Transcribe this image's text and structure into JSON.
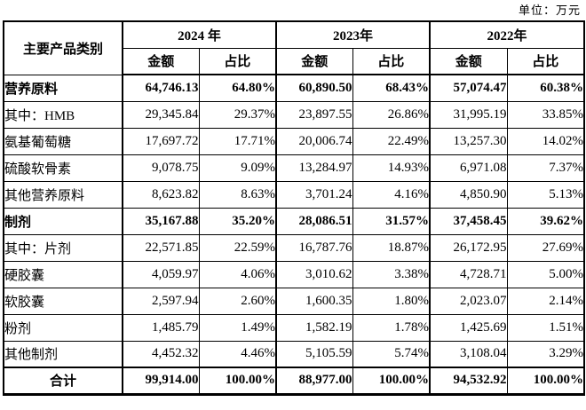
{
  "unit_label": "单位：万元",
  "table": {
    "category_header": "主要产品类别",
    "year_groups": [
      {
        "year": "2024 年",
        "amount_label": "金额",
        "share_label": "占比"
      },
      {
        "year": "2023年",
        "amount_label": "金额",
        "share_label": "占比"
      },
      {
        "year": "2022年",
        "amount_label": "金额",
        "share_label": "占比"
      }
    ],
    "rows": [
      {
        "category": "营养原料",
        "bold": true,
        "total": false,
        "values": [
          "64,746.13",
          "64.80%",
          "60,890.50",
          "68.43%",
          "57,074.47",
          "60.38%"
        ]
      },
      {
        "category": "其中：HMB",
        "bold": false,
        "total": false,
        "values": [
          "29,345.84",
          "29.37%",
          "23,897.55",
          "26.86%",
          "31,995.19",
          "33.85%"
        ]
      },
      {
        "category": "氨基葡萄糖",
        "bold": false,
        "total": false,
        "values": [
          "17,697.72",
          "17.71%",
          "20,006.74",
          "22.49%",
          "13,257.30",
          "14.02%"
        ]
      },
      {
        "category": "硫酸软骨素",
        "bold": false,
        "total": false,
        "values": [
          "9,078.75",
          "9.09%",
          "13,284.97",
          "14.93%",
          "6,971.08",
          "7.37%"
        ]
      },
      {
        "category": "其他营养原料",
        "bold": false,
        "total": false,
        "values": [
          "8,623.82",
          "8.63%",
          "3,701.24",
          "4.16%",
          "4,850.90",
          "5.13%"
        ]
      },
      {
        "category": "制剂",
        "bold": true,
        "total": false,
        "values": [
          "35,167.88",
          "35.20%",
          "28,086.51",
          "31.57%",
          "37,458.45",
          "39.62%"
        ]
      },
      {
        "category": "其中：片剂",
        "bold": false,
        "total": false,
        "values": [
          "22,571.85",
          "22.59%",
          "16,787.76",
          "18.87%",
          "26,172.95",
          "27.69%"
        ]
      },
      {
        "category": "硬胶囊",
        "bold": false,
        "total": false,
        "values": [
          "4,059.97",
          "4.06%",
          "3,010.62",
          "3.38%",
          "4,728.71",
          "5.00%"
        ]
      },
      {
        "category": "软胶囊",
        "bold": false,
        "total": false,
        "values": [
          "2,597.94",
          "2.60%",
          "1,600.35",
          "1.80%",
          "2,023.07",
          "2.14%"
        ]
      },
      {
        "category": "粉剂",
        "bold": false,
        "total": false,
        "values": [
          "1,485.79",
          "1.49%",
          "1,582.19",
          "1.78%",
          "1,425.69",
          "1.51%"
        ]
      },
      {
        "category": "其他制剂",
        "bold": false,
        "total": false,
        "values": [
          "4,452.32",
          "4.46%",
          "5,105.59",
          "5.74%",
          "3,108.04",
          "3.29%"
        ]
      },
      {
        "category": "合计",
        "bold": true,
        "total": true,
        "values": [
          "99,914.00",
          "100.00%",
          "88,977.00",
          "100.00%",
          "94,532.92",
          "100.00%"
        ]
      }
    ]
  }
}
